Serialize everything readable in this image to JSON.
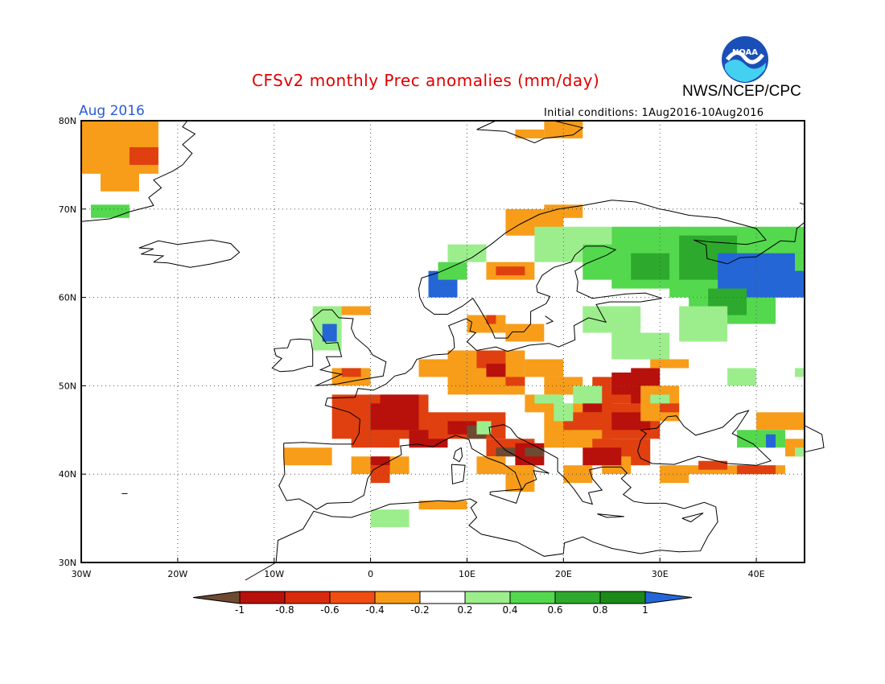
{
  "header": {
    "title": "CFSv2 monthly Prec anomalies (mm/day)",
    "organization": "NWS/NCEP/CPC",
    "month": "Aug 2016",
    "initial_conditions": "Initial conditions: 1Aug2016-10Aug2016",
    "logo_text": "NOAA"
  },
  "map": {
    "lon_ticks": [
      "30W",
      "20W",
      "10W",
      "0",
      "10E",
      "20E",
      "30E",
      "40E"
    ],
    "lat_ticks": [
      "30N",
      "40N",
      "50N",
      "60N",
      "70N",
      "80N"
    ]
  },
  "legend": {
    "labels": [
      "-1",
      "-0.8",
      "-0.6",
      "-0.4",
      "-0.2",
      "0.2",
      "0.4",
      "0.6",
      "0.8",
      "1"
    ],
    "colors": [
      "#6e4a32",
      "#b8110c",
      "#d82b0c",
      "#f04d12",
      "#f79d1a",
      "#ffffff",
      "#9cee8c",
      "#54d84e",
      "#2daa2d",
      "#1a8a1a",
      "#2466d6"
    ]
  },
  "colors": {
    "dry_extreme": "#6e4a32",
    "dry_strong": "#b8110c",
    "dry_mod": "#e0400f",
    "dry_weak": "#f79d1a",
    "wet_weak": "#9cee8c",
    "wet_mod": "#54d84e",
    "wet_strong": "#2daa2d",
    "wet_extreme": "#2466d6"
  }
}
